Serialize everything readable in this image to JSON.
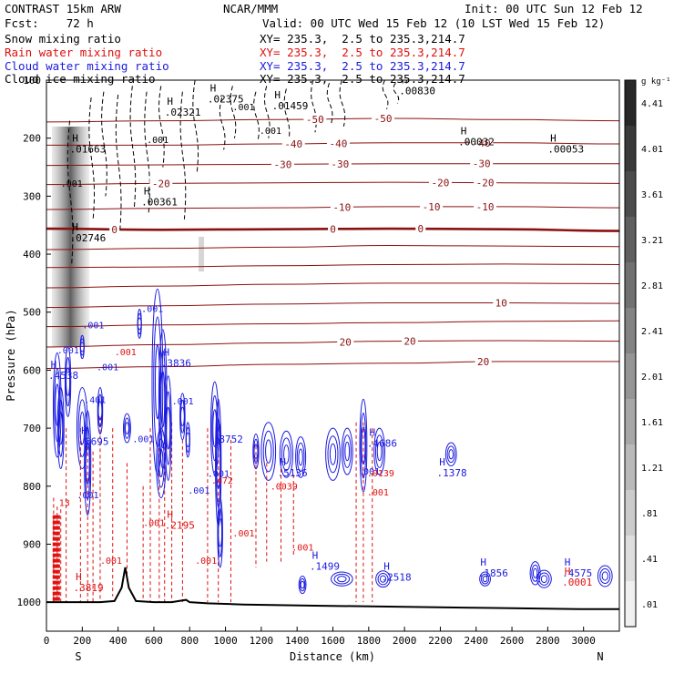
{
  "header": {
    "model": "CONTRAST 15km ARW",
    "forecast": "Fcst:    72 h",
    "center": "NCAR/MMM",
    "init": "Init: 00 UTC Sun 12 Feb 12",
    "valid": "Valid: 00 UTC Wed 15 Feb 12 (10 LST Wed 15 Feb 12)",
    "fields": [
      {
        "label": "Snow mixing ratio",
        "xy": "XY= 235.3,  2.5 to 235.3,214.7",
        "color": "#000000"
      },
      {
        "label": "Rain water mixing ratio",
        "xy": "XY= 235.3,  2.5 to 235.3,214.7",
        "color": "#e01010"
      },
      {
        "label": "Cloud water mixing ratio",
        "xy": "XY= 235.3,  2.5 to 235.3,214.7",
        "color": "#1a1ae0"
      },
      {
        "label": "Cloud ice mixing ratio",
        "xy": "XY= 235.3,  2.5 to 235.3,214.7",
        "color": "#000000"
      }
    ]
  },
  "chart_data": {
    "type": "cross-section",
    "xlabel": "Distance (km)",
    "ylabel": "Pressure (hPa)",
    "xlim": [
      0,
      3200
    ],
    "ylim": [
      1050,
      100
    ],
    "x_ticks": [
      0,
      200,
      400,
      600,
      800,
      1000,
      1200,
      1400,
      1600,
      1800,
      2000,
      2200,
      2400,
      2600,
      2800,
      3000
    ],
    "y_ticks": [
      100,
      200,
      300,
      400,
      500,
      600,
      700,
      800,
      900,
      1000
    ],
    "end_labels": {
      "left": "S",
      "right": "N"
    },
    "colorbar": {
      "unit": "g kg⁻¹",
      "labels": [
        "4.41",
        "4.01",
        "3.61",
        "3.21",
        "2.81",
        "2.41",
        "2.01",
        "1.61",
        "1.21",
        ".81",
        ".41",
        ".01"
      ]
    },
    "temperature_contours": [
      {
        "label": "-50",
        "p": [
          172,
          170,
          168,
          166,
          168,
          170
        ]
      },
      {
        "label": "-40",
        "p": [
          212,
          212,
          210,
          208,
          208,
          210
        ]
      },
      {
        "label": "-30",
        "p": [
          247,
          246,
          245,
          244,
          244,
          244
        ]
      },
      {
        "label": "-20",
        "p": [
          280,
          278,
          277,
          276,
          277,
          278
        ]
      },
      {
        "label": "-10",
        "p": [
          323,
          321,
          320,
          318,
          318,
          320
        ]
      },
      {
        "label": "0",
        "p": [
          356,
          358,
          357,
          356,
          357,
          360
        ]
      },
      {
        "label": "",
        "p": [
          392,
          390,
          388,
          385,
          386,
          387
        ]
      },
      {
        "label": "",
        "p": [
          423,
          422,
          420,
          418,
          417,
          418
        ]
      },
      {
        "label": "",
        "p": [
          458,
          455,
          452,
          450,
          450,
          451
        ]
      },
      {
        "label": "10",
        "p": [
          492,
          489,
          486,
          484,
          484,
          485
        ]
      },
      {
        "label": "",
        "p": [
          525,
          522,
          520,
          518,
          516,
          515
        ]
      },
      {
        "label": "20",
        "p": [
          560,
          556,
          553,
          550,
          549,
          550
        ]
      },
      {
        "label": "20",
        "p": [
          597,
          594,
          590,
          588,
          585,
          585
        ]
      }
    ],
    "temperature_x_km": [
      0,
      640,
      1280,
      1920,
      2560,
      3200
    ],
    "contour_label_positions": [
      {
        "text": "-50",
        "x": 1500,
        "c": 0
      },
      {
        "text": "-50",
        "x": 1880,
        "c": 0
      },
      {
        "text": "-40",
        "x": 1380,
        "c": 1
      },
      {
        "text": "-40",
        "x": 1630,
        "c": 1
      },
      {
        "text": "-40",
        "x": 2430,
        "c": 1
      },
      {
        "text": "-30",
        "x": 1320,
        "c": 2
      },
      {
        "text": "-30",
        "x": 1640,
        "c": 2
      },
      {
        "text": "-30",
        "x": 2430,
        "c": 2
      },
      {
        "text": "-20",
        "x": 640,
        "c": 3
      },
      {
        "text": "-20",
        "x": 2200,
        "c": 3
      },
      {
        "text": "-20",
        "x": 2450,
        "c": 3
      },
      {
        "text": "-10",
        "x": 1650,
        "c": 4
      },
      {
        "text": "-10",
        "x": 2150,
        "c": 4
      },
      {
        "text": "-10",
        "x": 2450,
        "c": 4
      },
      {
        "text": "0",
        "x": 380,
        "c": 5
      },
      {
        "text": "0",
        "x": 1600,
        "c": 5
      },
      {
        "text": "0",
        "x": 2090,
        "c": 5
      },
      {
        "text": "10",
        "x": 2540,
        "c": 9
      },
      {
        "text": "20",
        "x": 1670,
        "c": 11
      },
      {
        "text": "20",
        "x": 2030,
        "c": 11
      },
      {
        "text": "20",
        "x": 2440,
        "c": 12
      }
    ],
    "extrema": [
      {
        "label": ".00830",
        "x": 1970,
        "p": 121,
        "color": "#000000"
      },
      {
        "label": ".02375",
        "x": 900,
        "p": 135,
        "color": "#000000"
      },
      {
        "label": ".02321",
        "x": 660,
        "p": 158,
        "color": "#000000"
      },
      {
        "label": ".01459",
        "x": 1260,
        "p": 147,
        "color": "#000000"
      },
      {
        "label": ".01663",
        "x": 130,
        "p": 222,
        "color": "#000000"
      },
      {
        "label": ".00032",
        "x": 2300,
        "p": 209,
        "color": "#000000"
      },
      {
        "label": ".00053",
        "x": 2800,
        "p": 222,
        "color": "#000000"
      },
      {
        "label": ".00361",
        "x": 530,
        "p": 313,
        "color": "#000000"
      },
      {
        "label": ".02746",
        "x": 130,
        "p": 375,
        "color": "#000000"
      },
      {
        "label": ".4538",
        "x": 10,
        "p": 612,
        "color": "#1a1ae0"
      },
      {
        "label": ".3836",
        "x": 640,
        "p": 591,
        "color": "#1a1ae0"
      },
      {
        "label": ".6695",
        "x": 180,
        "p": 726,
        "color": "#1a1ae0"
      },
      {
        "label": ".8752",
        "x": 930,
        "p": 722,
        "color": "#1a1ae0"
      },
      {
        "label": ".5136",
        "x": 1290,
        "p": 780,
        "color": "#1a1ae0"
      },
      {
        "label": ".4686",
        "x": 1790,
        "p": 729,
        "color": "#1a1ae0"
      },
      {
        "label": ".1378",
        "x": 2180,
        "p": 780,
        "color": "#1a1ae0"
      },
      {
        "label": ".1499",
        "x": 1470,
        "p": 941,
        "color": "#1a1ae0"
      },
      {
        "label": ".2518",
        "x": 1870,
        "p": 960,
        "color": "#1a1ae0"
      },
      {
        "label": ".1856",
        "x": 2410,
        "p": 953,
        "color": "#1a1ae0"
      },
      {
        "label": ".4575",
        "x": 2880,
        "p": 953,
        "color": "#1a1ae0"
      },
      {
        "label": ".2195",
        "x": 660,
        "p": 870,
        "color": "#e01010"
      },
      {
        "label": ".3819",
        "x": 150,
        "p": 978,
        "color": "#e01010"
      },
      {
        "label": ".0001",
        "x": 2880,
        "p": 968,
        "color": "#e01010"
      }
    ],
    "contour_values_small": [
      {
        "label": ".001",
        "x": 560,
        "p": 208,
        "color": "#000000"
      },
      {
        "label": ".001",
        "x": 1040,
        "p": 152,
        "color": "#000000"
      },
      {
        "label": ".001",
        "x": 1190,
        "p": 193,
        "color": "#000000"
      },
      {
        "label": ".001",
        "x": 80,
        "p": 284,
        "color": "#000000"
      },
      {
        "label": ".001",
        "x": 530,
        "p": 500,
        "color": "#1a1ae0"
      },
      {
        "label": ".001",
        "x": 200,
        "p": 528,
        "color": "#1a1ae0"
      },
      {
        "label": ".001",
        "x": 60,
        "p": 571,
        "color": "#1a1ae0"
      },
      {
        "label": ".001",
        "x": 280,
        "p": 600,
        "color": "#1a1ae0"
      },
      {
        "label": ".401",
        "x": 210,
        "p": 657,
        "color": "#1a1ae0"
      },
      {
        "label": ".001",
        "x": 700,
        "p": 659,
        "color": "#1a1ae0"
      },
      {
        "label": ".001",
        "x": 480,
        "p": 724,
        "color": "#1a1ae0"
      },
      {
        "label": ".001",
        "x": 900,
        "p": 784,
        "color": "#1a1ae0"
      },
      {
        "label": ".001",
        "x": 790,
        "p": 813,
        "color": "#1a1ae0"
      },
      {
        "label": ".001",
        "x": 170,
        "p": 821,
        "color": "#1a1ae0"
      },
      {
        "label": ".001",
        "x": 1740,
        "p": 780,
        "color": "#1a1ae0"
      },
      {
        "label": ".001",
        "x": 1790,
        "p": 816,
        "color": "#e01010"
      },
      {
        "label": ".0139",
        "x": 1790,
        "p": 783,
        "color": "#e01010"
      },
      {
        "label": ".0039",
        "x": 1250,
        "p": 806,
        "color": "#e01010"
      },
      {
        "label": ".472",
        "x": 920,
        "p": 796,
        "color": "#e01010"
      },
      {
        "label": ".001",
        "x": 1040,
        "p": 887,
        "color": "#e01010"
      },
      {
        "label": ".001",
        "x": 1370,
        "p": 911,
        "color": "#e01010"
      },
      {
        "label": ".001",
        "x": 830,
        "p": 934,
        "color": "#e01010"
      },
      {
        "label": ".001",
        "x": 300,
        "p": 934,
        "color": "#e01010"
      },
      {
        "label": ".001",
        "x": 380,
        "p": 574,
        "color": "#e01010"
      },
      {
        "label": ".001",
        "x": 540,
        "p": 869,
        "color": "#e01010"
      },
      {
        "label": "13",
        "x": 70,
        "p": 834,
        "color": "#e01010"
      }
    ],
    "terrain": {
      "x": [
        0,
        100,
        200,
        300,
        380,
        420,
        440,
        460,
        500,
        600,
        700,
        780,
        800,
        900,
        1100,
        1500,
        2000,
        2500,
        3000,
        3200
      ],
      "p": [
        1000,
        1000,
        1000,
        1000,
        998,
        975,
        940,
        975,
        998,
        1000,
        1000,
        996,
        1000,
        1002,
        1004,
        1006,
        1008,
        1010,
        1012,
        1012
      ]
    }
  }
}
